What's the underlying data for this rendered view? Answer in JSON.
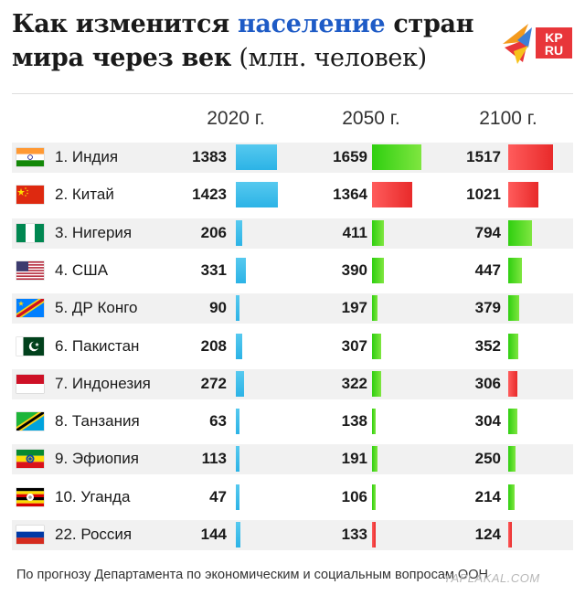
{
  "title": {
    "part1": "Как изменится ",
    "highlight": "население",
    "part2": " стран",
    "line2": "мира через век",
    "line2_light": " (млн. человек)"
  },
  "logo": {
    "text_top": "KP",
    "text_bottom": "RU"
  },
  "colors": {
    "accent_title": "#1e5bc6",
    "bar_2020": "#2cb3e6",
    "bar_growth": "#3ad11a",
    "bar_decline": "#e82a2a"
  },
  "footer": "По прогнозу Департамента по экономическим и социальным вопросам ООН",
  "watermark": "YAPLAKAL.COM",
  "chart_data": {
    "type": "bar",
    "title": "Как изменится население стран мира через век (млн. человек)",
    "years": [
      "2020 г.",
      "2050 г.",
      "2100 г."
    ],
    "categories": [
      "1. Индия",
      "2. Китай",
      "3. Нигерия",
      "4. США",
      "5. ДР Конго",
      "6. Пакистан",
      "7. Индонезия",
      "8. Танзания",
      "9. Эфиопия",
      "10. Уганда",
      "22. Россия"
    ],
    "flags": [
      "india",
      "china",
      "nigeria",
      "usa",
      "dr-congo",
      "pakistan",
      "indonesia",
      "tanzania",
      "ethiopia",
      "uganda",
      "russia"
    ],
    "series": [
      {
        "name": "2020 г.",
        "values": [
          1383,
          1423,
          206,
          331,
          90,
          208,
          272,
          63,
          113,
          47,
          144
        ]
      },
      {
        "name": "2050 г.",
        "values": [
          1659,
          1364,
          411,
          390,
          197,
          307,
          322,
          138,
          191,
          106,
          133
        ]
      },
      {
        "name": "2100 г.",
        "values": [
          1517,
          1021,
          794,
          447,
          379,
          352,
          306,
          304,
          250,
          214,
          124
        ]
      }
    ],
    "legend": "none",
    "grid": false
  }
}
